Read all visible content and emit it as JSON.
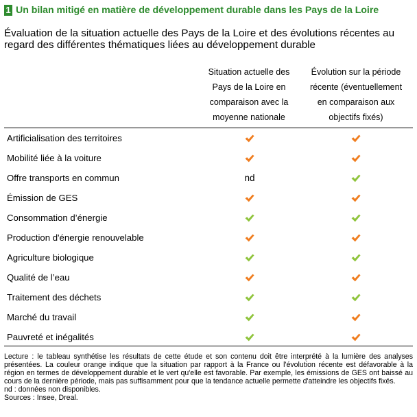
{
  "header": {
    "number": "1",
    "title": "Un bilan mitigé en matière de développement durable dans les Pays de la Loire",
    "subtitle": "Évaluation de la situation actuelle des Pays de la Loire et des évolutions récentes au regard des différentes thématiques liées au développement durable"
  },
  "table": {
    "columns": [
      {
        "lines": [
          "Situation actuelle des",
          "Pays de la Loire en",
          "comparaison avec la",
          "moyenne nationale"
        ]
      },
      {
        "lines": [
          "Évolution sur la période",
          "récente (éventuellement",
          "en comparaison aux",
          "objectifs fixés)"
        ]
      }
    ],
    "rows": [
      {
        "label": "Artificialisation des territoires",
        "situation": "orange",
        "evolution": "orange"
      },
      {
        "label": "Mobilité liée à la voiture",
        "situation": "orange",
        "evolution": "orange"
      },
      {
        "label": "Offre transports en commun",
        "situation": "nd",
        "evolution": "green"
      },
      {
        "label": "Émission de GES",
        "situation": "orange",
        "evolution": "orange"
      },
      {
        "label": "Consommation d’énergie",
        "situation": "green",
        "evolution": "green"
      },
      {
        "label": "Production d'énergie renouvelable",
        "situation": "orange",
        "evolution": "orange"
      },
      {
        "label": "Agriculture biologique",
        "situation": "green",
        "evolution": "green"
      },
      {
        "label": "Qualité de l’eau",
        "situation": "orange",
        "evolution": "orange"
      },
      {
        "label": "Traitement des déchets",
        "situation": "green",
        "evolution": "green"
      },
      {
        "label": "Marché du travail",
        "situation": "green",
        "evolution": "orange"
      },
      {
        "label": "Pauvreté et inégalités",
        "situation": "green",
        "evolution": "orange"
      }
    ],
    "nd_label": "nd"
  },
  "colors": {
    "orange": "#f07d1f",
    "green": "#8fc43c",
    "title_green": "#2e8b2e"
  },
  "icons": {
    "mark": "check-icon"
  },
  "footnote": {
    "lecture": "Lecture : le tableau synthétise les résultats de cette étude et son contenu doit être interprété à la lumière des analyses présentées. La couleur orange indique que la situation par rapport à la France ou l'évolution récente est défavorable à la région en termes de développement durable et le vert qu'elle est favorable. Par exemple, les émissions de GES ont baissé au cours de la dernière période, mais pas suffisamment pour que la tendance actuelle permette d'atteindre les objectifs fixés.",
    "nd": "nd : données non disponibles.",
    "sources": "Sources : Insee, Dreal."
  }
}
